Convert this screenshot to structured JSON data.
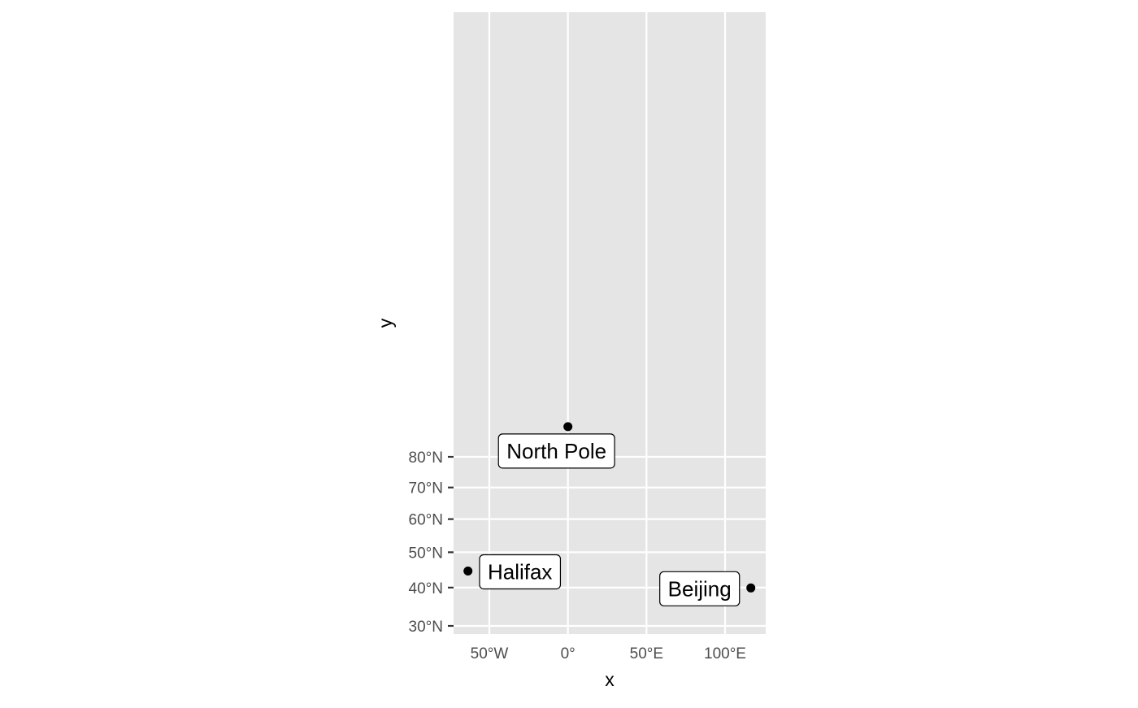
{
  "chart_data": {
    "type": "scatter",
    "projection": "polar stereographic latitude spacing",
    "xlabel": "x",
    "ylabel": "y",
    "x_ticks": [
      {
        "value": -50,
        "label": "50°W"
      },
      {
        "value": 0,
        "label": "0°"
      },
      {
        "value": 50,
        "label": "50°E"
      },
      {
        "value": 100,
        "label": "100°E"
      }
    ],
    "y_ticks": [
      {
        "value": 30,
        "label": "30°N"
      },
      {
        "value": 40,
        "label": "40°N"
      },
      {
        "value": 50,
        "label": "50°N"
      },
      {
        "value": 60,
        "label": "60°N"
      },
      {
        "value": 70,
        "label": "70°N"
      },
      {
        "value": 80,
        "label": "80°N"
      }
    ],
    "xlim": [
      -72,
      125
    ],
    "ylim": [
      27,
      90
    ],
    "points": [
      {
        "name": "North Pole",
        "lon": 0,
        "lat": 90
      },
      {
        "name": "Halifax",
        "lon": -63.6,
        "lat": 44.6
      },
      {
        "name": "Beijing",
        "lon": 116.4,
        "lat": 39.9
      }
    ],
    "grid": true,
    "legend": "none",
    "colors": {
      "panel_background": "#e5e5e5",
      "grid": "#ffffff",
      "point": "#000000",
      "label_fill": "#ffffff",
      "label_border": "#000000",
      "tick_text": "#4d4d4d",
      "tick_mark": "#333333"
    }
  }
}
